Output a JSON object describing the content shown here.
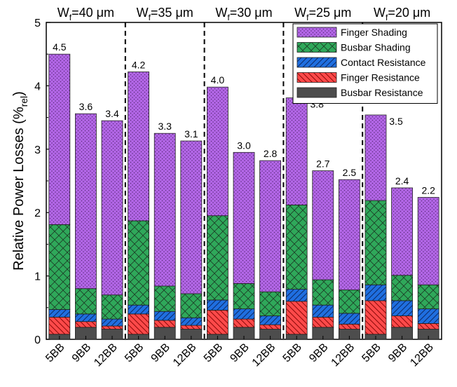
{
  "chart_data": {
    "type": "bar",
    "stacked": true,
    "ylabel_main": "Relative Power Losses (%",
    "ylabel_sub": "rel",
    "ylabel_close": ")",
    "ylim": [
      0,
      5
    ],
    "yticks": [
      "0",
      "1",
      "2",
      "3",
      "4",
      "5"
    ],
    "groups": [
      {
        "label_main": "W",
        "label_sub": "f",
        "label_rest": "=40 μm",
        "bars": [
          {
            "category": "5BB",
            "total_label": "4.5",
            "values": [
              0.08,
              0.27,
              0.12,
              1.34,
              2.69
            ]
          },
          {
            "category": "9BB",
            "total_label": "3.6",
            "values": [
              0.19,
              0.09,
              0.12,
              0.4,
              2.76
            ]
          },
          {
            "category": "12BB",
            "total_label": "3.4",
            "values": [
              0.16,
              0.05,
              0.11,
              0.38,
              2.75
            ]
          }
        ]
      },
      {
        "label_main": "W",
        "label_sub": "f",
        "label_rest": "=35 μm",
        "bars": [
          {
            "category": "5BB",
            "total_label": "4.2",
            "values": [
              0.08,
              0.32,
              0.14,
              1.33,
              2.35
            ]
          },
          {
            "category": "9BB",
            "total_label": "3.3",
            "values": [
              0.19,
              0.11,
              0.14,
              0.4,
              2.41
            ]
          },
          {
            "category": "12BB",
            "total_label": "3.1",
            "values": [
              0.16,
              0.06,
              0.12,
              0.38,
              2.41
            ]
          }
        ]
      },
      {
        "label_main": "W",
        "label_sub": "f",
        "label_rest": "=30 μm",
        "bars": [
          {
            "category": "5BB",
            "total_label": "4.0",
            "values": [
              0.08,
              0.38,
              0.16,
              1.33,
              2.03
            ]
          },
          {
            "category": "9BB",
            "total_label": "3.0",
            "values": [
              0.19,
              0.13,
              0.16,
              0.4,
              2.07
            ]
          },
          {
            "category": "12BB",
            "total_label": "2.8",
            "values": [
              0.16,
              0.07,
              0.14,
              0.38,
              2.07
            ]
          }
        ]
      },
      {
        "label_main": "W",
        "label_sub": "f",
        "label_rest": "=25 μm",
        "bars": [
          {
            "category": "5BB",
            "total_label": "3.8",
            "values": [
              0.08,
              0.52,
              0.19,
              1.33,
              1.69
            ]
          },
          {
            "category": "9BB",
            "total_label": "2.7",
            "values": [
              0.19,
              0.16,
              0.19,
              0.4,
              1.72
            ]
          },
          {
            "category": "12BB",
            "total_label": "2.5",
            "values": [
              0.16,
              0.08,
              0.17,
              0.37,
              1.74
            ]
          }
        ]
      },
      {
        "label_main": "W",
        "label_sub": "f",
        "label_rest": "=20 μm",
        "bars": [
          {
            "category": "5BB",
            "total_label": "3.5",
            "values": [
              0.08,
              0.53,
              0.25,
              1.33,
              1.35
            ]
          },
          {
            "category": "9BB",
            "total_label": "2.4",
            "values": [
              0.19,
              0.18,
              0.24,
              0.4,
              1.38
            ]
          },
          {
            "category": "12BB",
            "total_label": "2.2",
            "values": [
              0.16,
              0.09,
              0.23,
              0.38,
              1.38
            ]
          }
        ]
      }
    ],
    "series": [
      {
        "name": "Busbar Resistance",
        "color": "#4d4d4d",
        "pattern": "none"
      },
      {
        "name": "Finger Resistance",
        "color": "#ff4a4a",
        "pattern": "diagonal-back"
      },
      {
        "name": "Contact Resistance",
        "color": "#1f6fe0",
        "pattern": "diagonal-forward"
      },
      {
        "name": "Busbar Shading",
        "color": "#2fa85a",
        "pattern": "crosshatch"
      },
      {
        "name": "Finger Shading",
        "color": "#b266e6",
        "pattern": "dots"
      }
    ],
    "legend_order": [
      "Finger Shading",
      "Busbar Shading",
      "Contact Resistance",
      "Finger Resistance",
      "Busbar Resistance"
    ],
    "legend_position": "top-right"
  }
}
